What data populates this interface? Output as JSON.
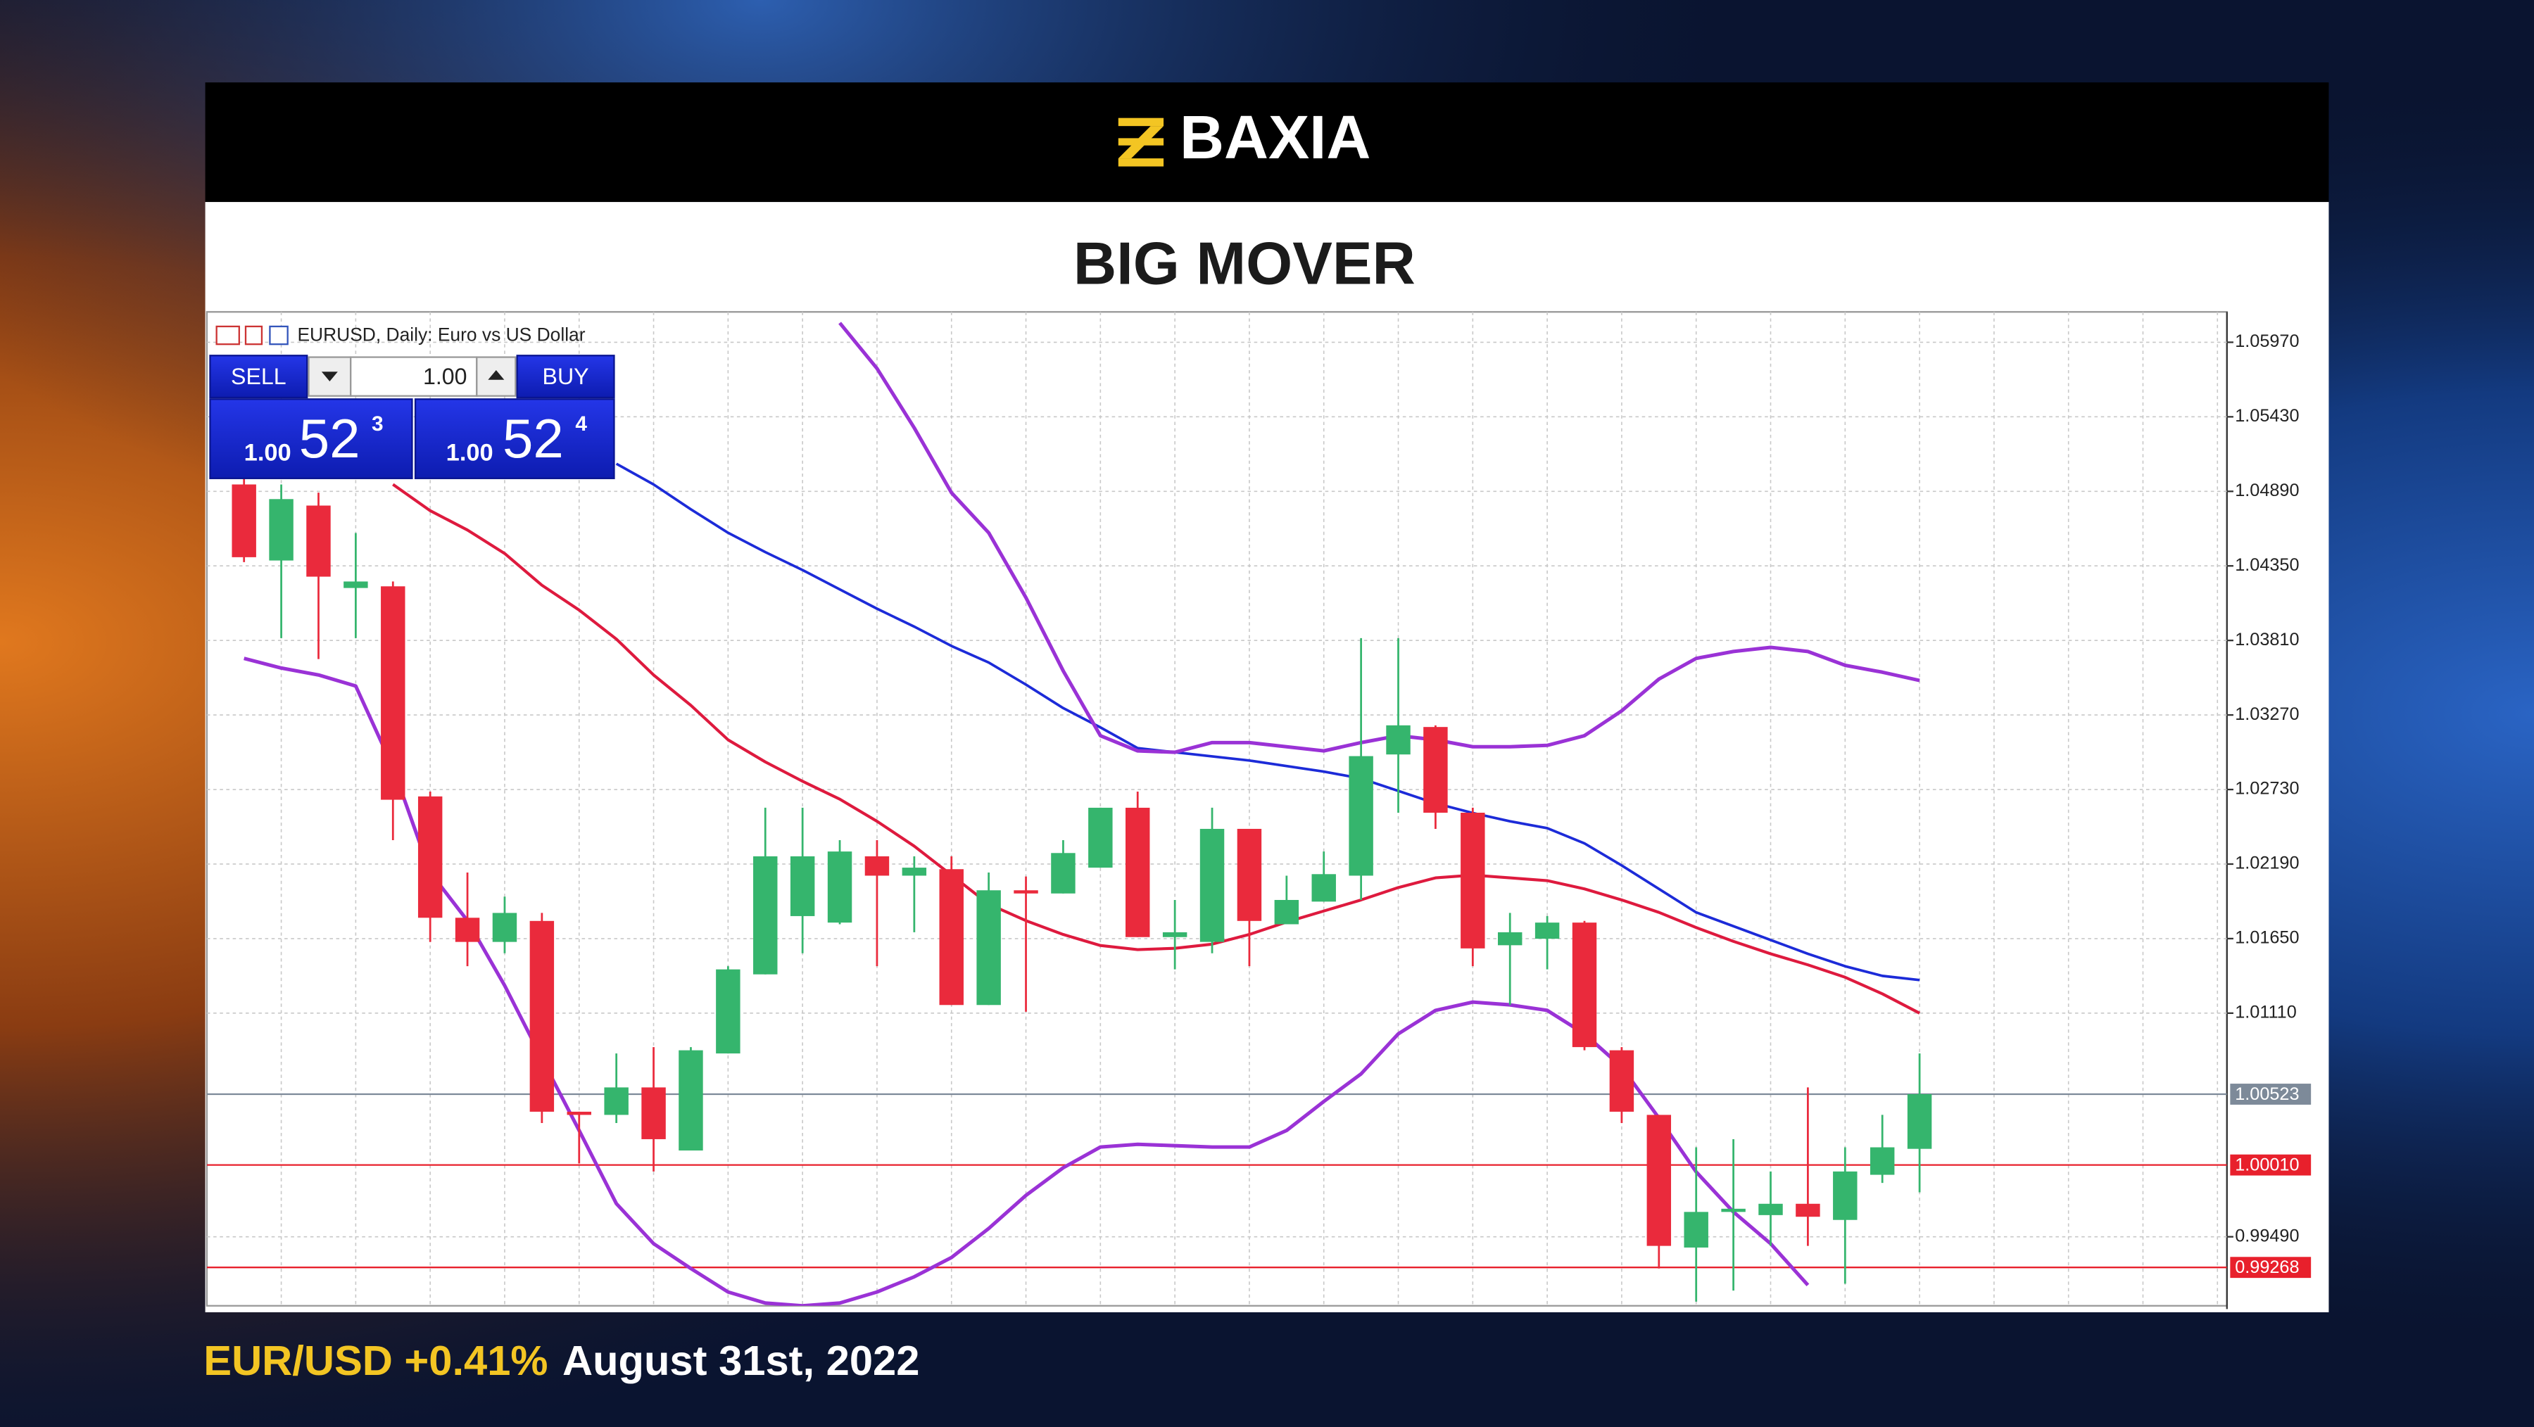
{
  "header": {
    "brand": "BAXIA",
    "title": "BIG MOVER"
  },
  "footer": {
    "pair_change": "EUR/USD +0.41%",
    "date": "August 31st, 2022"
  },
  "trade_panel": {
    "sell": "SELL",
    "buy": "BUY",
    "volume": "1.00",
    "bid": {
      "prefix": "1.00",
      "big": "52",
      "small": "3"
    },
    "ask": {
      "prefix": "1.00",
      "big": "52",
      "small": "4"
    }
  },
  "chart_data": {
    "type": "candlestick",
    "title": "EURUSD, Daily:  Euro vs US Dollar",
    "up_color": "#35b56d",
    "down_color": "#ea2a3c",
    "open": [
      1.0494,
      1.04389,
      1.04787,
      1.0419,
      1.04202,
      1.0268,
      1.01801,
      1.01626,
      1.01778,
      1.00396,
      1.00373,
      1.00572,
      1.00115,
      1.00818,
      1.01391,
      1.01813,
      1.01766,
      1.02246,
      1.02106,
      1.02153,
      1.01169,
      1.02,
      1.01977,
      1.02164,
      1.02598,
      1.01661,
      1.01626,
      1.02445,
      1.01754,
      1.01918,
      1.02106,
      1.02984,
      1.03183,
      1.02562,
      1.01602,
      1.01649,
      1.01766,
      1.00841,
      1.00373,
      0.99412,
      0.9967,
      0.99647,
      0.99729,
      0.99612,
      0.99939,
      1.00127
    ],
    "high": [
      1.05057,
      1.0494,
      1.04881,
      1.04588,
      1.04237,
      1.02715,
      1.02129,
      1.01954,
      1.01836,
      1.00396,
      1.00818,
      1.00864,
      1.00864,
      1.0145,
      1.02598,
      1.02598,
      1.02363,
      1.02363,
      1.02246,
      1.02246,
      1.02129,
      1.021,
      1.02363,
      1.02598,
      1.02715,
      1.0193,
      1.02598,
      1.02445,
      1.02106,
      1.02281,
      1.03827,
      1.03827,
      1.03195,
      1.02598,
      1.01836,
      1.01813,
      1.01778,
      1.00864,
      1.00373,
      1.00138,
      1.00197,
      0.99963,
      1.00572,
      1.00138,
      1.00373,
      1.00818
    ],
    "low": [
      1.04377,
      1.03827,
      1.03675,
      1.03827,
      1.02363,
      1.01626,
      1.0145,
      1.01544,
      1.00314,
      1.00021,
      1.00314,
      0.99963,
      1.00115,
      1.00818,
      1.01391,
      1.01544,
      1.01754,
      1.0145,
      1.01696,
      1.01169,
      1.01169,
      1.0112,
      1.01977,
      1.02164,
      1.01661,
      1.01427,
      1.01544,
      1.0145,
      1.01754,
      1.01918,
      1.0193,
      1.02562,
      1.02445,
      1.0145,
      1.01169,
      1.01427,
      1.00841,
      1.00314,
      0.9926,
      0.9902,
      0.991,
      0.99424,
      0.99424,
      0.9915,
      0.9988,
      0.99812
    ],
    "close": [
      1.04413,
      1.04834,
      1.04272,
      1.04237,
      1.02656,
      1.01801,
      1.01626,
      1.01836,
      1.00396,
      1.00373,
      1.00572,
      1.00197,
      1.00841,
      1.01427,
      1.02246,
      1.02246,
      1.02281,
      1.02106,
      1.02164,
      1.01169,
      1.02,
      1.01977,
      1.0227,
      1.02598,
      1.01661,
      1.01696,
      1.02445,
      1.01778,
      1.0193,
      1.02117,
      1.02972,
      1.03195,
      1.02562,
      1.01579,
      1.01696,
      1.01766,
      1.00864,
      1.00396,
      0.99424,
      0.9967,
      0.99693,
      0.99729,
      0.99635,
      0.99963,
      1.00138,
      1.00523
    ],
    "lines": [
      {
        "color": "#1c2bd8",
        "width": 1.6,
        "values": [
          null,
          null,
          null,
          null,
          null,
          null,
          null,
          null,
          null,
          null,
          1.0509,
          1.0494,
          1.0476,
          1.0459,
          1.0445,
          1.0432,
          1.0418,
          1.0404,
          1.0391,
          1.0377,
          1.0365,
          1.0349,
          1.0332,
          1.0318,
          1.0303,
          1.03,
          1.0297,
          1.0294,
          1.029,
          1.0286,
          1.0281,
          1.0272,
          1.0263,
          1.0256,
          1.025,
          1.0245,
          1.0234,
          1.0218,
          1.0201,
          1.0184,
          1.0174,
          1.0164,
          1.0154,
          1.0145,
          1.0138,
          1.0135
        ]
      },
      {
        "color": "#de1a3e",
        "width": 1.8,
        "values": [
          null,
          null,
          null,
          null,
          1.0494,
          1.0475,
          1.0461,
          1.0444,
          1.0421,
          1.0403,
          1.0382,
          1.0356,
          1.0334,
          1.0309,
          1.0293,
          1.0279,
          1.0266,
          1.025,
          1.0232,
          1.0211,
          1.019,
          1.0178,
          1.0168,
          1.016,
          1.0157,
          1.0158,
          1.0161,
          1.0168,
          1.0177,
          1.0185,
          1.0193,
          1.0202,
          1.0209,
          1.0211,
          1.0209,
          1.0207,
          1.0201,
          1.0193,
          1.0184,
          1.0173,
          1.0163,
          1.0154,
          1.0146,
          1.0137,
          1.0125,
          1.0111
        ]
      },
      {
        "color": "#9a32d6",
        "width": 2.2,
        "values": [
          null,
          null,
          null,
          null,
          null,
          null,
          null,
          null,
          null,
          null,
          null,
          null,
          null,
          null,
          null,
          null,
          1.0611,
          1.0578,
          1.0535,
          1.0488,
          1.0459,
          1.0412,
          1.0359,
          1.0312,
          1.0301,
          1.03,
          1.0307,
          1.0307,
          1.0304,
          1.0301,
          1.0307,
          1.0312,
          1.0309,
          1.0304,
          1.0304,
          1.0305,
          1.0312,
          1.033,
          1.0353,
          1.0368,
          1.0373,
          1.0376,
          1.0373,
          1.0363,
          1.0358,
          1.0352
        ]
      },
      {
        "color": "#9a32d6",
        "width": 2.2,
        "values": [
          1.0368,
          1.0361,
          1.0356,
          1.0348,
          1.0289,
          1.0213,
          1.0178,
          1.0131,
          1.0078,
          1.0026,
          0.9973,
          0.9944,
          0.9926,
          0.9909,
          0.9901,
          0.9899,
          0.9901,
          0.9909,
          0.992,
          0.9934,
          0.9955,
          0.9979,
          0.9999,
          1.0014,
          1.0016,
          1.0015,
          1.0014,
          1.0014,
          1.0026,
          1.0047,
          1.0067,
          1.0096,
          1.0113,
          1.0119,
          1.0117,
          1.0113,
          1.0096,
          1.0072,
          1.0035,
          0.9996,
          0.9967,
          0.9944,
          0.9914,
          null,
          null,
          null
        ]
      }
    ],
    "price_lines": [
      {
        "value": 1.00523,
        "label": "1.00523",
        "color": "#7d8a99"
      },
      {
        "value": 1.0001,
        "label": "1.00010",
        "color": "#e8202c"
      },
      {
        "value": 0.99268,
        "label": "0.99268",
        "color": "#e8202c"
      }
    ],
    "ylim": [
      0.9899,
      1.0619
    ],
    "yticks": [
      {
        "value": 1.0597,
        "label": "1.05970"
      },
      {
        "value": 1.0543,
        "label": "1.05430"
      },
      {
        "value": 1.0489,
        "label": "1.04890"
      },
      {
        "value": 1.0435,
        "label": "1.04350"
      },
      {
        "value": 1.0381,
        "label": "1.03810"
      },
      {
        "value": 1.0327,
        "label": "1.03270"
      },
      {
        "value": 1.0273,
        "label": "1.02730"
      },
      {
        "value": 1.0219,
        "label": "1.02190"
      },
      {
        "value": 1.0165,
        "label": "1.01650"
      },
      {
        "value": 1.0111,
        "label": "1.01110"
      },
      {
        "value": 0.9949,
        "label": "0.99490"
      }
    ],
    "grid": true
  }
}
